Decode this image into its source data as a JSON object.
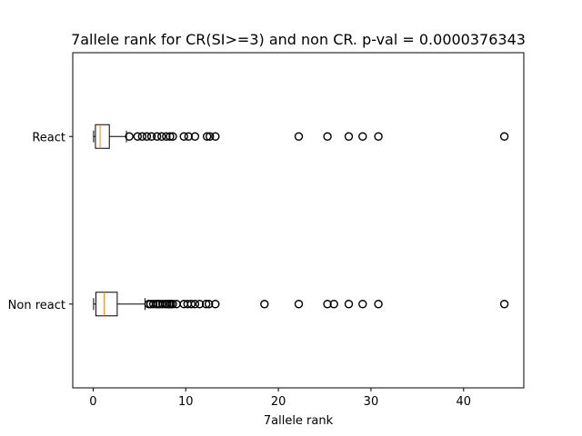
{
  "chart_data": {
    "type": "boxplot",
    "orientation": "horizontal",
    "title": "7allele rank for CR(SI>=3) and non CR. p-val = 0.0000376343",
    "xlabel": "7allele rank",
    "ylabel": "",
    "xlim": [
      -2.2,
      46.5
    ],
    "x_ticks": [
      0,
      10,
      20,
      30,
      40
    ],
    "x_tick_labels": [
      "0",
      "10",
      "20",
      "30",
      "40"
    ],
    "grid": false,
    "categories": [
      "Non react",
      "React"
    ],
    "series": [
      {
        "category": "Non react",
        "whisker_low": 0.05,
        "q1": 0.3,
        "median": 1.2,
        "q3": 2.6,
        "whisker_high": 5.6,
        "fliers": [
          6.0,
          6.2,
          6.5,
          6.8,
          7.0,
          7.2,
          7.5,
          7.8,
          8.0,
          8.2,
          8.4,
          8.6,
          9.0,
          9.8,
          10.2,
          10.6,
          11.0,
          11.5,
          12.2,
          12.5,
          13.2,
          18.5,
          22.2,
          25.3,
          26.0,
          27.6,
          29.1,
          30.8,
          44.4
        ]
      },
      {
        "category": "React",
        "whisker_low": 0.05,
        "q1": 0.25,
        "median": 0.75,
        "q3": 1.75,
        "whisker_high": 3.6,
        "fliers": [
          3.9,
          4.8,
          5.3,
          5.8,
          6.3,
          6.9,
          7.4,
          7.9,
          8.3,
          8.6,
          9.8,
          10.3,
          11.0,
          12.3,
          12.6,
          13.2,
          22.2,
          25.3,
          27.6,
          29.1,
          30.8,
          44.4
        ]
      }
    ],
    "colors": {
      "box": "#000000",
      "median": "#ff7f0e",
      "flier": "#000000",
      "background": "#ffffff"
    }
  }
}
